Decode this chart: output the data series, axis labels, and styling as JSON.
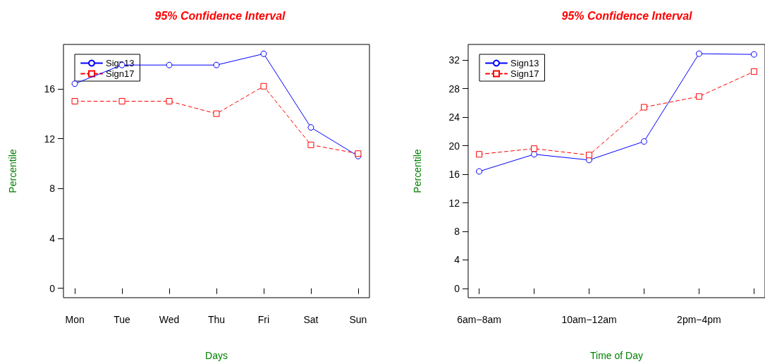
{
  "chart_data": [
    {
      "type": "line",
      "title": "95% Confidence Interval",
      "xlabel": "Days",
      "ylabel": "Percentile",
      "categories": [
        "Mon",
        "Tue",
        "Wed",
        "Thu",
        "Fri",
        "Sat",
        "Sun"
      ],
      "series": [
        {
          "name": "Sign13",
          "color": "#0000ff",
          "marker": "circle",
          "line_style": "solid",
          "values": [
            16.4,
            17.9,
            17.9,
            17.9,
            18.8,
            12.9,
            10.6
          ]
        },
        {
          "name": "Sign17",
          "color": "#ff0000",
          "marker": "square",
          "line_style": "dashed",
          "values": [
            15.0,
            15.0,
            15.0,
            14.0,
            16.2,
            11.5,
            10.8
          ]
        }
      ],
      "ylim": [
        -0.75,
        19.55
      ],
      "yticks": [
        0,
        4,
        8,
        12,
        16
      ],
      "grid": false,
      "legend": "top left"
    },
    {
      "type": "line",
      "title": "95% Confidence Interval",
      "xlabel": "Time of Day",
      "ylabel": "Percentile",
      "categories": [
        "6am−8am",
        null,
        "10am−12am",
        null,
        "2pm−4pm",
        null
      ],
      "series": [
        {
          "name": "Sign13",
          "color": "#0000ff",
          "marker": "circle",
          "line_style": "solid",
          "values": [
            16.4,
            18.8,
            18.0,
            20.6,
            32.9,
            32.8
          ]
        },
        {
          "name": "Sign17",
          "color": "#ff0000",
          "marker": "square",
          "line_style": "dashed",
          "values": [
            18.8,
            19.6,
            18.7,
            25.4,
            26.9,
            30.4
          ]
        }
      ],
      "ylim": [
        -1.3,
        34.2
      ],
      "yticks": [
        0,
        4,
        8,
        12,
        16,
        20,
        24,
        28,
        32
      ],
      "grid": false,
      "legend": "top left"
    }
  ]
}
